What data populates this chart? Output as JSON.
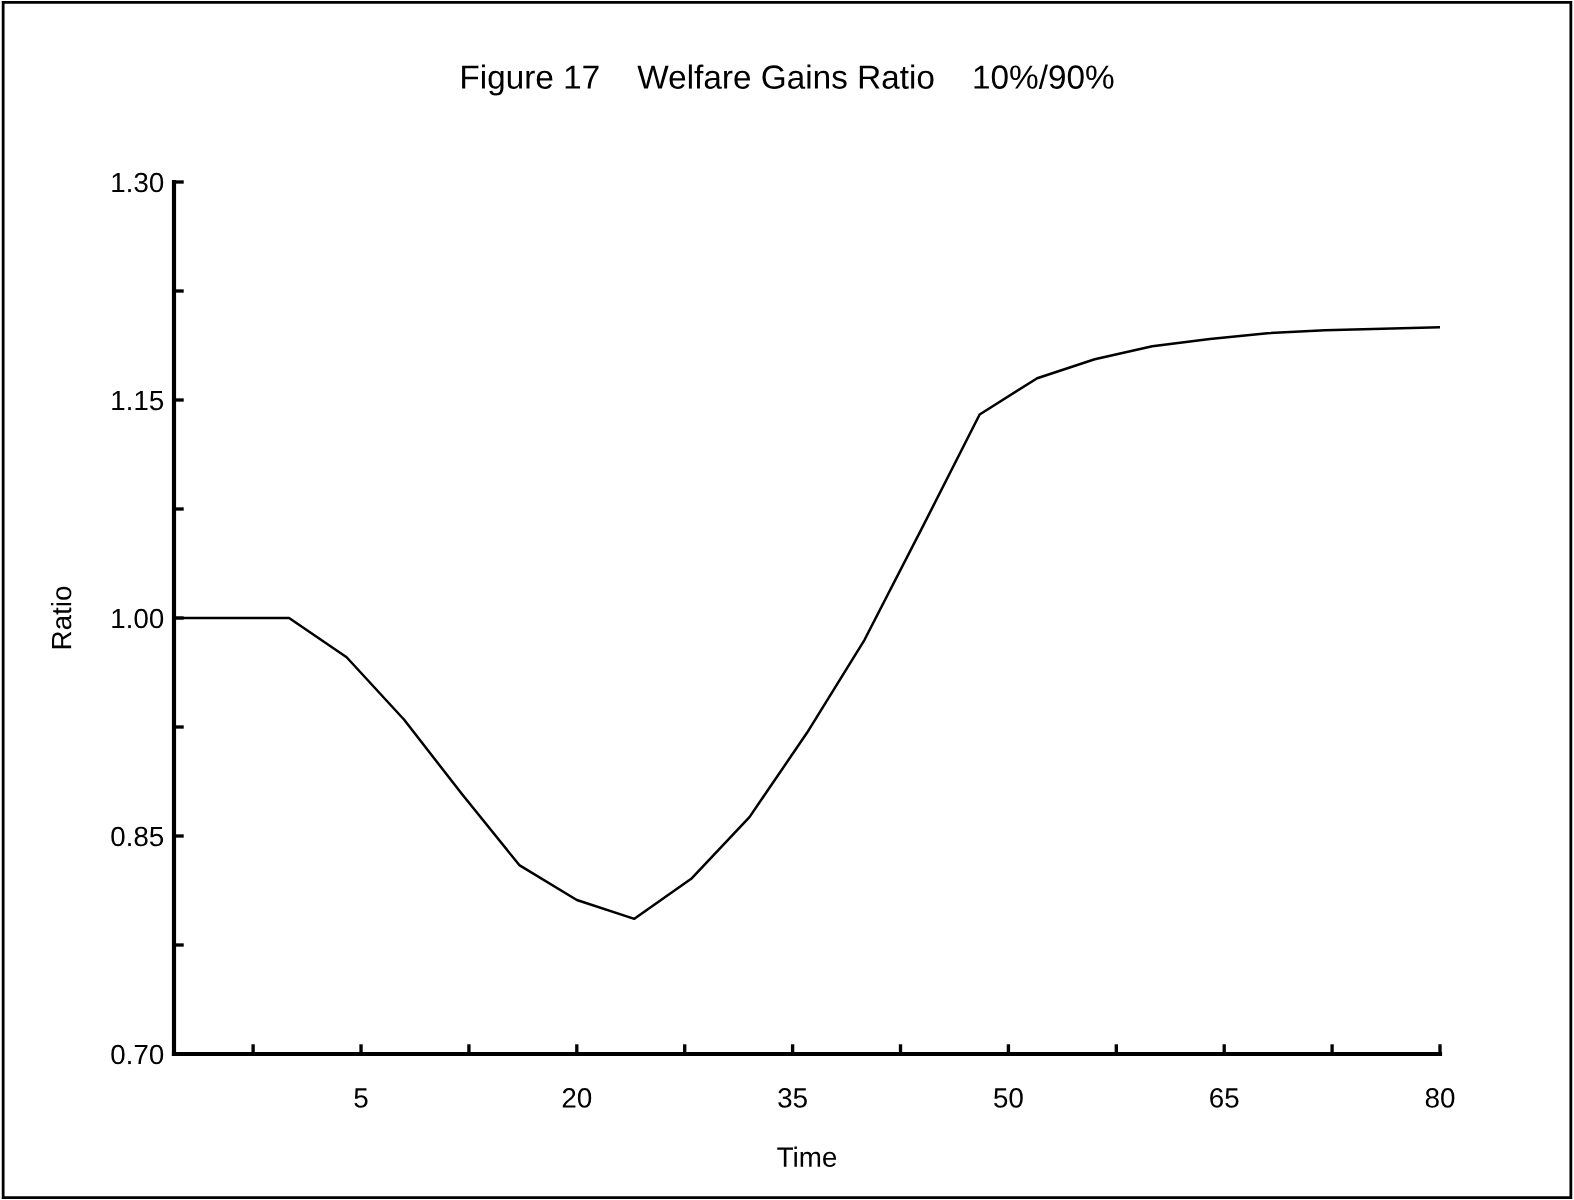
{
  "chart_data": {
    "type": "line",
    "title": "Figure 17    Welfare Gains Ratio    10%/90%",
    "xlabel": "Time",
    "ylabel": "Ratio",
    "x": [
      -8,
      0,
      4,
      8,
      12,
      16,
      20,
      24,
      28,
      32,
      36,
      40,
      44,
      48,
      52,
      56,
      60,
      64,
      68,
      72,
      76,
      80
    ],
    "series": [
      {
        "color": "#000000",
        "values": [
          1.0,
          1.0,
          0.973,
          0.93,
          0.879,
          0.83,
          0.806,
          0.793,
          0.821,
          0.863,
          0.921,
          0.985,
          1.062,
          1.14,
          1.165,
          1.178,
          1.187,
          1.192,
          1.196,
          1.198,
          1.199,
          1.2
        ]
      }
    ],
    "xlim": [
      -8,
      80
    ],
    "ylim": [
      0.7,
      1.3
    ],
    "xticks": [
      {
        "value": -2.5,
        "label": null
      },
      5,
      {
        "value": 12.5,
        "label": null
      },
      20,
      {
        "value": 27.5,
        "label": null
      },
      35,
      {
        "value": 42.5,
        "label": null
      },
      50,
      {
        "value": 57.5,
        "label": null
      },
      65,
      {
        "value": 72.5,
        "label": null
      },
      80
    ],
    "yticks": [
      {
        "value": 0.7,
        "label": "0.70"
      },
      {
        "value": 0.775,
        "label": null
      },
      {
        "value": 0.85,
        "label": "0.85"
      },
      {
        "value": 0.925,
        "label": null
      },
      {
        "value": 1.0,
        "label": "1.00"
      },
      {
        "value": 1.075,
        "label": null
      },
      {
        "value": 1.15,
        "label": "1.15"
      },
      {
        "value": 1.225,
        "label": null
      },
      {
        "value": 1.3,
        "label": "1.30"
      }
    ],
    "grid": false,
    "legend": false,
    "marker": "none",
    "line_style": "solid"
  }
}
